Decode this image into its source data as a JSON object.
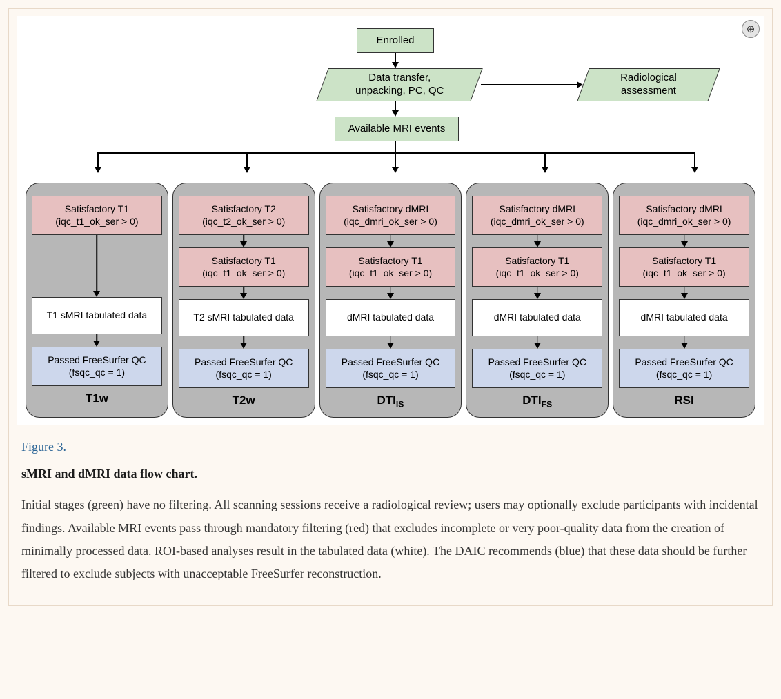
{
  "colors": {
    "page_bg": "#fdf8f2",
    "frame_border": "#e8d9c8",
    "chart_bg": "#ffffff",
    "green_fill": "#cce3c7",
    "red_fill": "#e7c0c0",
    "blue_fill": "#cdd7ec",
    "white_fill": "#ffffff",
    "lane_bg": "#b7b7b7",
    "node_border": "#333333",
    "arrow": "#000000",
    "link": "#2a6496",
    "text": "#333333"
  },
  "top_nodes": {
    "enrolled": "Enrolled",
    "transfer": "Data transfer,\nunpacking, PC, QC",
    "radiological": "Radiological\nassessment",
    "available": "Available MRI events"
  },
  "lanes": [
    {
      "id": "t1w",
      "label_main": "T1w",
      "label_sub": "",
      "red1": {
        "title": "Satisfactory T1",
        "cond": "(iqc_t1_ok_ser > 0)"
      },
      "red2": null,
      "white": "T1 sMRI tabulated data",
      "blue": {
        "title": "Passed FreeSurfer QC",
        "cond": "(fsqc_qc = 1)"
      }
    },
    {
      "id": "t2w",
      "label_main": "T2w",
      "label_sub": "",
      "red1": {
        "title": "Satisfactory T2",
        "cond": "(iqc_t2_ok_ser > 0)"
      },
      "red2": {
        "title": "Satisfactory T1",
        "cond": "(iqc_t1_ok_ser > 0)"
      },
      "white": "T2 sMRI tabulated data",
      "blue": {
        "title": "Passed FreeSurfer QC",
        "cond": "(fsqc_qc = 1)"
      }
    },
    {
      "id": "dti_is",
      "label_main": "DTI",
      "label_sub": "IS",
      "red1": {
        "title": "Satisfactory dMRI",
        "cond": "(iqc_dmri_ok_ser > 0)"
      },
      "red2": {
        "title": "Satisfactory T1",
        "cond": "(iqc_t1_ok_ser > 0)"
      },
      "white": "dMRI tabulated data",
      "blue": {
        "title": "Passed FreeSurfer QC",
        "cond": "(fsqc_qc = 1)"
      }
    },
    {
      "id": "dti_fs",
      "label_main": "DTI",
      "label_sub": "FS",
      "red1": {
        "title": "Satisfactory dMRI",
        "cond": "(iqc_dmri_ok_ser > 0)"
      },
      "red2": {
        "title": "Satisfactory T1",
        "cond": "(iqc_t1_ok_ser > 0)"
      },
      "white": "dMRI tabulated data",
      "blue": {
        "title": "Passed FreeSurfer QC",
        "cond": "(fsqc_qc = 1)"
      }
    },
    {
      "id": "rsi",
      "label_main": "RSI",
      "label_sub": "",
      "red1": {
        "title": "Satisfactory dMRI",
        "cond": "(iqc_dmri_ok_ser > 0)"
      },
      "red2": {
        "title": "Satisfactory T1",
        "cond": "(iqc_t1_ok_ser > 0)"
      },
      "white": "dMRI tabulated data",
      "blue": {
        "title": "Passed FreeSurfer QC",
        "cond": "(fsqc_qc = 1)"
      }
    }
  ],
  "caption": {
    "link": "Figure 3.",
    "title": "sMRI and dMRI data flow chart.",
    "body": "Initial stages (green) have no filtering. All scanning sessions receive a radiological review; users may optionally exclude participants with incidental findings. Available MRI events pass through mandatory filtering (red) that excludes incomplete or very poor-quality data from the creation of minimally processed data. ROI-based analyses result in the tabulated data (white). The DAIC recommends (blue) that these data should be further filtered to exclude subjects with unacceptable FreeSurfer reconstruction."
  },
  "zoom_glyph": "⊕"
}
